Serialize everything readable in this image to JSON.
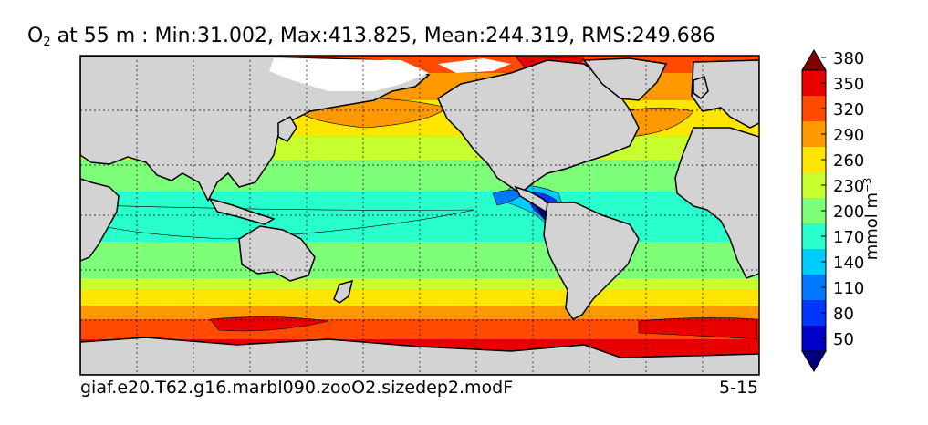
{
  "title": {
    "variable": "O",
    "variable_sub": "2",
    "rest": " at 55 m : Min:31.002, Max:413.825, Mean:244.319, RMS:249.686"
  },
  "footer": {
    "case_name": "giaf.e20.T62.g16.marbl090.zooO2.sizedep2.modF",
    "years": "5-15"
  },
  "colorbar": {
    "unit_text": "mmol m",
    "unit_exp": "−3",
    "levels": [
      50,
      80,
      110,
      140,
      170,
      200,
      230,
      260,
      290,
      320,
      350,
      380
    ],
    "colors": [
      "#00007f",
      "#0000c8",
      "#0036ff",
      "#0078ff",
      "#00cdff",
      "#29ffcd",
      "#7dff7a",
      "#c8ff2f",
      "#ffe600",
      "#ff9900",
      "#ff4a00",
      "#e80000",
      "#7f0000"
    ],
    "extend": "both"
  },
  "chart_data": {
    "type": "heatmap",
    "map_type": "global ocean contour map",
    "variable": "O2",
    "depth": "55 m",
    "min": 31.002,
    "max": 413.825,
    "mean": 244.319,
    "rms": 249.686,
    "contour_levels": [
      50,
      80,
      110,
      140,
      170,
      200,
      230,
      260,
      290,
      320,
      350,
      380
    ],
    "land_color": "#d3d3d3",
    "grid": true,
    "colorbar_position": "right"
  }
}
